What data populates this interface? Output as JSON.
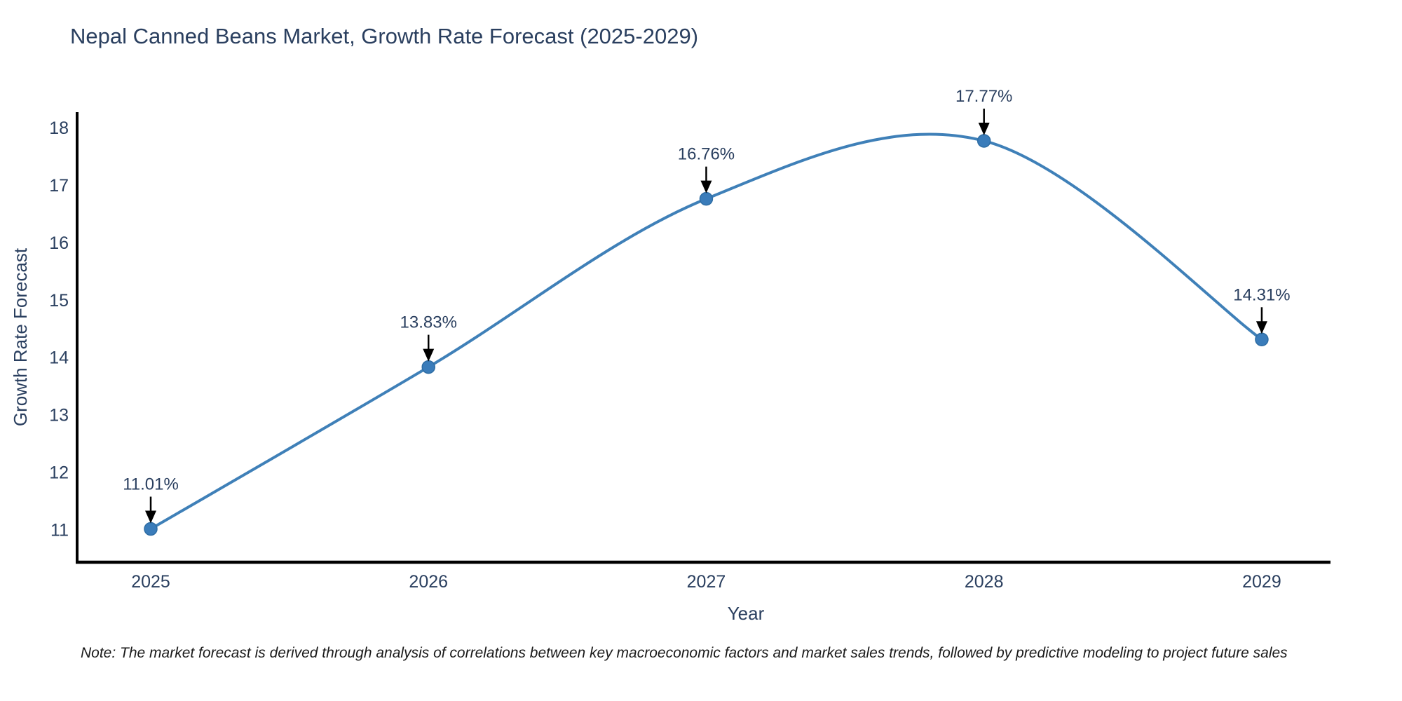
{
  "note": {
    "text": "Note: The market forecast is derived through analysis of correlations between key macroeconomic factors and market sales trends, followed by predictive modeling to project future sales"
  },
  "colors": {
    "line": "#3f80b8",
    "marker_fill": "#3a7cba",
    "marker_edge": "#2e6da4",
    "axis_line": "#000000",
    "tick_text": "#2a3f5f",
    "annotation_text": "#2a3f5f",
    "arrow": "#000000",
    "title_text": "#2a3f5f",
    "background": "#ffffff"
  },
  "chart_data": {
    "type": "line",
    "title": "Nepal Canned Beans Market, Growth Rate Forecast (2025-2029)",
    "x": [
      2025,
      2026,
      2027,
      2028,
      2029
    ],
    "values": [
      11.01,
      13.83,
      16.76,
      17.77,
      14.31
    ],
    "point_labels": [
      "11.01%",
      "13.83%",
      "16.76%",
      "17.77%",
      "14.31%"
    ],
    "series_name": "Growth Rate Forecast",
    "xlabel": "Year",
    "ylabel": "Growth Rate Forecast",
    "xticks": [
      2025,
      2026,
      2027,
      2028,
      2029
    ],
    "yticks": [
      11,
      12,
      13,
      14,
      15,
      16,
      17,
      18
    ],
    "xlim": [
      2024.735,
      2029.2475
    ],
    "ylim": [
      10.43,
      18.27
    ],
    "grid": false,
    "legend": "none",
    "line_shape": "spline",
    "annotations": "value labels with downward arrows above each point"
  }
}
